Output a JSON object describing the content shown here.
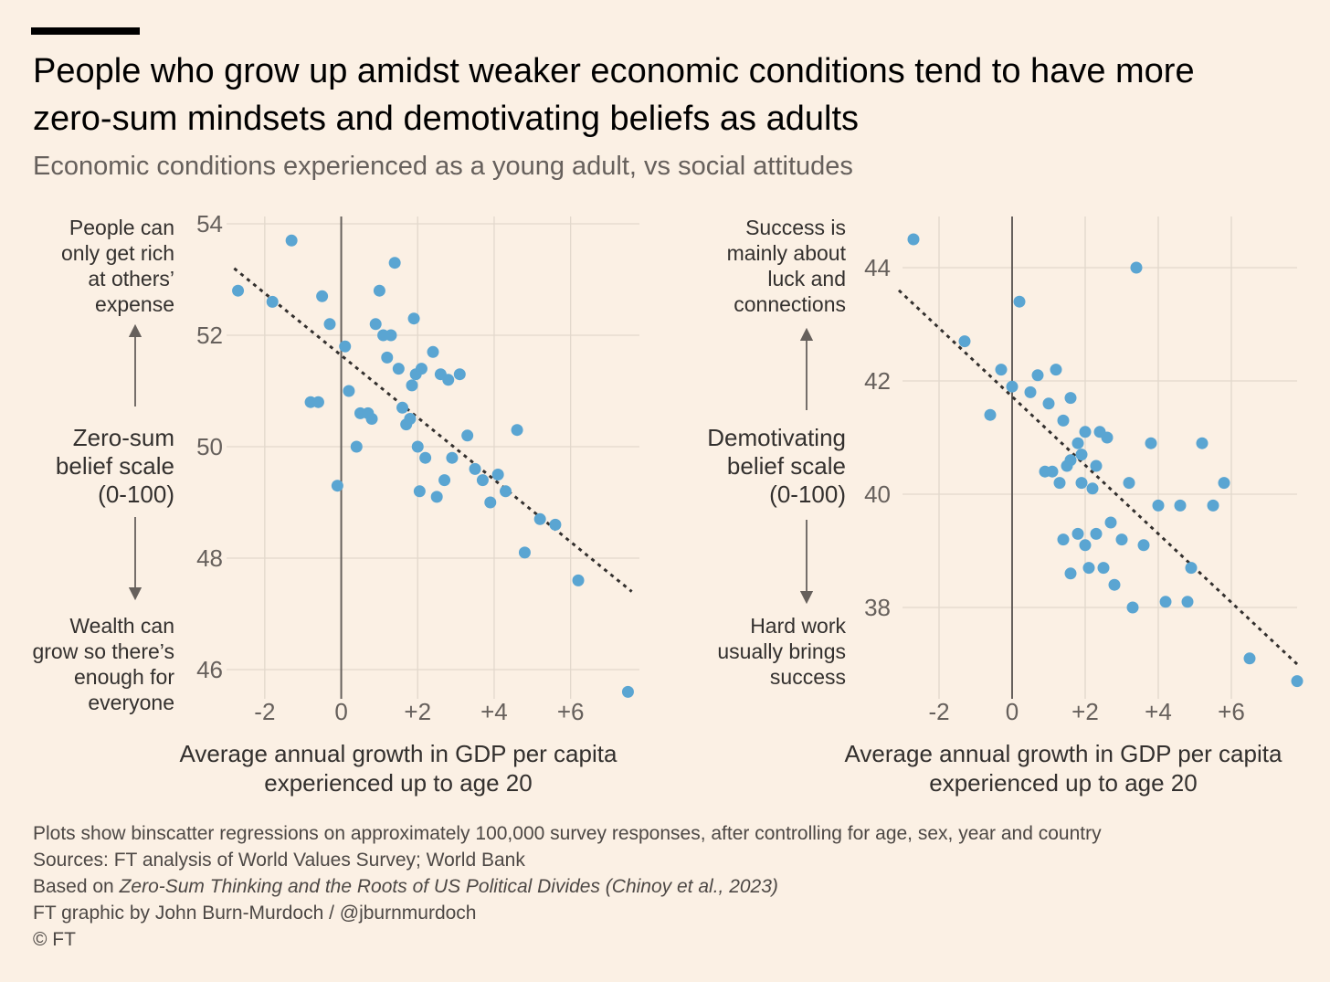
{
  "header": {
    "title": "People who grow up amidst weaker economic conditions tend to have more zero-sum mindsets and demotivating beliefs as adults",
    "subtitle": "Economic conditions experienced as a young adult, vs social attitudes"
  },
  "colors": {
    "background": "#fbf0e4",
    "dot": "#5aa5d2",
    "grid": "#e2d8cc",
    "axis": "#66605c",
    "trend": "#33302e",
    "text": "#33302e"
  },
  "chart_data": [
    {
      "type": "scatter",
      "title": "Zero-sum belief scale (0-100)",
      "ylabel_lines": [
        "Zero-sum",
        "belief scale",
        "(0-100)"
      ],
      "top_label_lines": [
        "People can",
        "only get rich",
        "at others’",
        "expense"
      ],
      "bottom_label_lines": [
        "Wealth can",
        "grow so there’s",
        "enough for",
        "everyone"
      ],
      "xlabel_lines": [
        "Average annual growth in GDP per capita",
        "experienced up to age 20"
      ],
      "xlim": [
        -3,
        7.8
      ],
      "ylim": [
        45.5,
        54
      ],
      "xticks": [
        -2,
        0,
        2,
        4,
        6
      ],
      "xtick_labels": [
        "-2",
        "0",
        "+2",
        "+4",
        "+6"
      ],
      "yticks": [
        46,
        48,
        50,
        52,
        54
      ],
      "ytick_labels": [
        "46",
        "48",
        "50",
        "52",
        "54"
      ],
      "trend": [
        [
          -2.8,
          53.2
        ],
        [
          7.6,
          47.4
        ]
      ],
      "points": [
        [
          -2.7,
          52.8
        ],
        [
          -1.3,
          53.7
        ],
        [
          -1.8,
          52.6
        ],
        [
          -0.5,
          52.7
        ],
        [
          -0.3,
          52.2
        ],
        [
          0.1,
          51.8
        ],
        [
          -0.8,
          50.8
        ],
        [
          -0.6,
          50.8
        ],
        [
          0.2,
          51.0
        ],
        [
          0.4,
          50.0
        ],
        [
          -0.1,
          49.3
        ],
        [
          0.5,
          50.6
        ],
        [
          0.7,
          50.6
        ],
        [
          0.8,
          50.5
        ],
        [
          0.9,
          52.2
        ],
        [
          1.0,
          52.8
        ],
        [
          1.1,
          52.0
        ],
        [
          1.3,
          52.0
        ],
        [
          1.2,
          51.6
        ],
        [
          1.4,
          53.3
        ],
        [
          1.5,
          51.4
        ],
        [
          1.6,
          50.7
        ],
        [
          1.7,
          50.4
        ],
        [
          1.8,
          50.5
        ],
        [
          1.85,
          51.1
        ],
        [
          1.9,
          52.3
        ],
        [
          1.95,
          51.3
        ],
        [
          2.1,
          51.4
        ],
        [
          2.4,
          51.7
        ],
        [
          2.6,
          51.3
        ],
        [
          2.8,
          51.2
        ],
        [
          3.1,
          51.3
        ],
        [
          2.0,
          50.0
        ],
        [
          2.2,
          49.8
        ],
        [
          2.05,
          49.2
        ],
        [
          2.5,
          49.1
        ],
        [
          2.7,
          49.4
        ],
        [
          2.9,
          49.8
        ],
        [
          3.3,
          50.2
        ],
        [
          3.5,
          49.6
        ],
        [
          3.7,
          49.4
        ],
        [
          3.9,
          49.0
        ],
        [
          4.1,
          49.5
        ],
        [
          4.3,
          49.2
        ],
        [
          4.6,
          50.3
        ],
        [
          4.8,
          48.1
        ],
        [
          5.2,
          48.7
        ],
        [
          5.6,
          48.6
        ],
        [
          6.2,
          47.6
        ],
        [
          7.5,
          45.6
        ]
      ]
    },
    {
      "type": "scatter",
      "title": "Demotivating belief scale (0-100)",
      "ylabel_lines": [
        "Demotivating",
        "belief scale",
        "(0-100)"
      ],
      "top_label_lines": [
        "Success is",
        "mainly about",
        "luck and",
        "connections"
      ],
      "bottom_label_lines": [
        "Hard work",
        "usually brings",
        "success"
      ],
      "xlabel_lines": [
        "Average annual growth in GDP per capita",
        "experienced up to age 20"
      ],
      "xlim": [
        -3,
        7.8
      ],
      "ylim": [
        36.7,
        44.8
      ],
      "xticks": [
        -2,
        0,
        2,
        4,
        6
      ],
      "xtick_labels": [
        "-2",
        "0",
        "+2",
        "+4",
        "+6"
      ],
      "yticks": [
        38,
        40,
        42,
        44
      ],
      "ytick_labels": [
        "38",
        "40",
        "42",
        "44"
      ],
      "trend": [
        [
          -3.1,
          43.6
        ],
        [
          7.8,
          37.0
        ]
      ],
      "points": [
        [
          -2.7,
          44.5
        ],
        [
          -1.3,
          42.7
        ],
        [
          0.2,
          43.4
        ],
        [
          3.4,
          44.0
        ],
        [
          -0.3,
          42.2
        ],
        [
          -0.6,
          41.4
        ],
        [
          0.5,
          41.8
        ],
        [
          0.7,
          42.1
        ],
        [
          0.0,
          41.9
        ],
        [
          1.2,
          42.2
        ],
        [
          1.0,
          41.6
        ],
        [
          1.6,
          41.7
        ],
        [
          1.4,
          41.3
        ],
        [
          1.8,
          40.9
        ],
        [
          1.9,
          40.7
        ],
        [
          2.0,
          41.1
        ],
        [
          2.4,
          41.1
        ],
        [
          2.6,
          41.0
        ],
        [
          1.6,
          40.6
        ],
        [
          1.5,
          40.5
        ],
        [
          0.9,
          40.4
        ],
        [
          1.1,
          40.4
        ],
        [
          1.3,
          40.2
        ],
        [
          1.9,
          40.2
        ],
        [
          2.2,
          40.1
        ],
        [
          2.3,
          40.5
        ],
        [
          3.2,
          40.2
        ],
        [
          3.8,
          40.9
        ],
        [
          4.0,
          39.8
        ],
        [
          4.6,
          39.8
        ],
        [
          5.2,
          40.9
        ],
        [
          5.8,
          40.2
        ],
        [
          5.5,
          39.8
        ],
        [
          2.7,
          39.5
        ],
        [
          1.8,
          39.3
        ],
        [
          2.3,
          39.3
        ],
        [
          3.0,
          39.2
        ],
        [
          3.6,
          39.1
        ],
        [
          1.4,
          39.2
        ],
        [
          2.0,
          39.1
        ],
        [
          4.9,
          38.7
        ],
        [
          1.6,
          38.6
        ],
        [
          2.1,
          38.7
        ],
        [
          2.5,
          38.7
        ],
        [
          2.8,
          38.4
        ],
        [
          3.3,
          38.0
        ],
        [
          4.2,
          38.1
        ],
        [
          4.8,
          38.1
        ],
        [
          6.5,
          37.1
        ],
        [
          7.8,
          36.7
        ]
      ]
    }
  ],
  "footer": {
    "note": "Plots show binscatter regressions on approximately 100,000 survey responses, after controlling for age, sex, year and country",
    "sources": "Sources: FT analysis of World Values Survey; World Bank",
    "based_prefix": "Based on ",
    "based_title": "Zero-Sum Thinking and the Roots of US Political Divides (Chinoy et al., 2023)",
    "credit": "FT graphic by John Burn-Murdoch / @jburnmurdoch",
    "copyright": "© FT"
  }
}
